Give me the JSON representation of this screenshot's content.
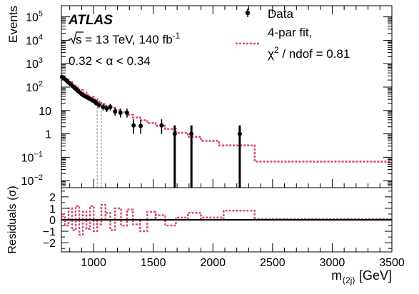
{
  "chart_data": [
    {
      "type": "scatter",
      "panel": "main",
      "ylabel": "Events",
      "yscale": "log",
      "ylim": [
        0.005,
        300000
      ],
      "xlim": [
        730,
        3500
      ],
      "yticks": [
        {
          "value": 0.01,
          "label": "10",
          "exp": "−2"
        },
        {
          "value": 0.1,
          "label": "10",
          "exp": "−1"
        },
        {
          "value": 1,
          "label": "1",
          "exp": ""
        },
        {
          "value": 10,
          "label": "10",
          "exp": ""
        },
        {
          "value": 100,
          "label": "10",
          "exp": "2"
        },
        {
          "value": 1000,
          "label": "10",
          "exp": "3"
        },
        {
          "value": 10000,
          "label": "10",
          "exp": "4"
        },
        {
          "value": 100000,
          "label": "10",
          "exp": "5"
        }
      ],
      "text": {
        "experiment": "ATLAS",
        "sqrt_s": "s = 13 TeV, 140 fb",
        "sqrt_s_exp": "-1",
        "alpha_range": "0.32 < α < 0.34"
      },
      "legend": {
        "data_label": "Data",
        "fit_label_1": "4-par fit,",
        "fit_label_2": "χ",
        "fit_label_2_exp": "2",
        "fit_label_3": " / ndof = 0.81"
      },
      "colors": {
        "data": "#000000",
        "fit": "#d44a6c",
        "window": "#888888"
      },
      "window_lines": [
        1030,
        1065
      ],
      "series": [
        {
          "name": "Data",
          "points": [
            {
              "x": 735,
              "y": 270,
              "lo": 240,
              "hi": 300
            },
            {
              "x": 750,
              "y": 240,
              "lo": 215,
              "hi": 265
            },
            {
              "x": 765,
              "y": 205,
              "lo": 185,
              "hi": 228
            },
            {
              "x": 780,
              "y": 175,
              "lo": 157,
              "hi": 195
            },
            {
              "x": 795,
              "y": 150,
              "lo": 134,
              "hi": 168
            },
            {
              "x": 810,
              "y": 128,
              "lo": 114,
              "hi": 144
            },
            {
              "x": 825,
              "y": 108,
              "lo": 95,
              "hi": 122
            },
            {
              "x": 840,
              "y": 92,
              "lo": 81,
              "hi": 104
            },
            {
              "x": 855,
              "y": 80,
              "lo": 70,
              "hi": 91
            },
            {
              "x": 870,
              "y": 68,
              "lo": 59,
              "hi": 78
            },
            {
              "x": 885,
              "y": 58,
              "lo": 50,
              "hi": 67
            },
            {
              "x": 900,
              "y": 50,
              "lo": 43,
              "hi": 58
            },
            {
              "x": 915,
              "y": 44,
              "lo": 37,
              "hi": 52
            },
            {
              "x": 930,
              "y": 40,
              "lo": 34,
              "hi": 47
            },
            {
              "x": 945,
              "y": 36,
              "lo": 30,
              "hi": 43
            },
            {
              "x": 960,
              "y": 33,
              "lo": 27,
              "hi": 40
            },
            {
              "x": 975,
              "y": 30,
              "lo": 24,
              "hi": 36
            },
            {
              "x": 990,
              "y": 27,
              "lo": 22,
              "hi": 33
            },
            {
              "x": 1005,
              "y": 25,
              "lo": 20,
              "hi": 31
            },
            {
              "x": 1020,
              "y": 21,
              "lo": 16,
              "hi": 27
            },
            {
              "x": 1045,
              "y": 17,
              "lo": 13,
              "hi": 22
            },
            {
              "x": 1080,
              "y": 14,
              "lo": 10,
              "hi": 19
            },
            {
              "x": 1110,
              "y": 12,
              "lo": 8.5,
              "hi": 16
            },
            {
              "x": 1140,
              "y": 14,
              "lo": 10,
              "hi": 19
            },
            {
              "x": 1180,
              "y": 9,
              "lo": 6,
              "hi": 13
            },
            {
              "x": 1225,
              "y": 8,
              "lo": 5,
              "hi": 12
            },
            {
              "x": 1280,
              "y": 8,
              "lo": 5,
              "hi": 12
            },
            {
              "x": 1335,
              "y": 2.3,
              "lo": 1,
              "hi": 4.2
            },
            {
              "x": 1395,
              "y": 2.2,
              "lo": 1,
              "hi": 4
            },
            {
              "x": 1570,
              "y": 2.3,
              "lo": 1,
              "hi": 4.2
            },
            {
              "x": 1680,
              "y": 1,
              "lo": 0.005,
              "hi": 2.3
            },
            {
              "x": 1820,
              "y": 1,
              "lo": 0.005,
              "hi": 2.3
            },
            {
              "x": 2225,
              "y": 1,
              "lo": 0.005,
              "hi": 2.3
            }
          ]
        },
        {
          "name": "4-par fit",
          "steps": [
            [
              730,
              250
            ],
            [
              760,
              210
            ],
            [
              790,
              165
            ],
            [
              820,
              125
            ],
            [
              850,
              95
            ],
            [
              880,
              75
            ],
            [
              910,
              58
            ],
            [
              940,
              46
            ],
            [
              970,
              37
            ],
            [
              1000,
              30
            ],
            [
              1030,
              24
            ],
            [
              1065,
              19
            ],
            [
              1100,
              16
            ],
            [
              1140,
              13
            ],
            [
              1180,
              10.5
            ],
            [
              1230,
              8.5
            ],
            [
              1280,
              6.5
            ],
            [
              1330,
              5
            ],
            [
              1390,
              3.8
            ],
            [
              1450,
              2.9
            ],
            [
              1520,
              2.2
            ],
            [
              1600,
              1.6
            ],
            [
              1690,
              1.1
            ],
            [
              1790,
              0.75
            ],
            [
              1900,
              0.5
            ],
            [
              2050,
              0.32
            ],
            [
              2350,
              0.065
            ],
            [
              3500,
              0.065
            ]
          ]
        }
      ]
    },
    {
      "type": "bar",
      "panel": "residuals",
      "ylabel": "Residuals (σ)",
      "xlabel": "m",
      "xlabel_sub": "⟨2j⟩",
      "xlabel_unit": " [GeV]",
      "xlim": [
        730,
        3500
      ],
      "ylim": [
        -2.8,
        2.8
      ],
      "yticks": [
        {
          "value": -2,
          "label": "−2"
        },
        {
          "value": -1,
          "label": "−1"
        },
        {
          "value": 0,
          "label": "0"
        },
        {
          "value": 1,
          "label": "1"
        },
        {
          "value": 2,
          "label": "2"
        }
      ],
      "xticks": [
        {
          "value": 1000,
          "label": "1000"
        },
        {
          "value": 1500,
          "label": "1500"
        },
        {
          "value": 2000,
          "label": "2000"
        },
        {
          "value": 2500,
          "label": "2500"
        },
        {
          "value": 3000,
          "label": "3000"
        },
        {
          "value": 3500,
          "label": "3500"
        }
      ],
      "bins": [
        [
          730,
          760,
          0.3
        ],
        [
          760,
          790,
          -0.5
        ],
        [
          790,
          820,
          1.0
        ],
        [
          820,
          850,
          -0.9
        ],
        [
          850,
          880,
          1.2
        ],
        [
          880,
          910,
          -1.3
        ],
        [
          910,
          940,
          0.7
        ],
        [
          940,
          970,
          -0.8
        ],
        [
          970,
          1000,
          1.2
        ],
        [
          1000,
          1030,
          -1.0
        ],
        [
          1030,
          1065,
          -0.4
        ],
        [
          1065,
          1100,
          1.3
        ],
        [
          1100,
          1140,
          0.6
        ],
        [
          1140,
          1180,
          -0.9
        ],
        [
          1180,
          1230,
          1.0
        ],
        [
          1230,
          1280,
          -0.5
        ],
        [
          1280,
          1330,
          0.9
        ],
        [
          1330,
          1390,
          -0.4
        ],
        [
          1390,
          1450,
          -1.0
        ],
        [
          1450,
          1520,
          0.7
        ],
        [
          1520,
          1600,
          0.4
        ],
        [
          1600,
          1690,
          -0.5
        ],
        [
          1690,
          1790,
          0.2
        ],
        [
          1790,
          1900,
          0.6
        ],
        [
          1900,
          2090,
          0.2
        ],
        [
          2090,
          2350,
          0.8
        ],
        [
          2350,
          3500,
          0.05
        ]
      ]
    }
  ]
}
